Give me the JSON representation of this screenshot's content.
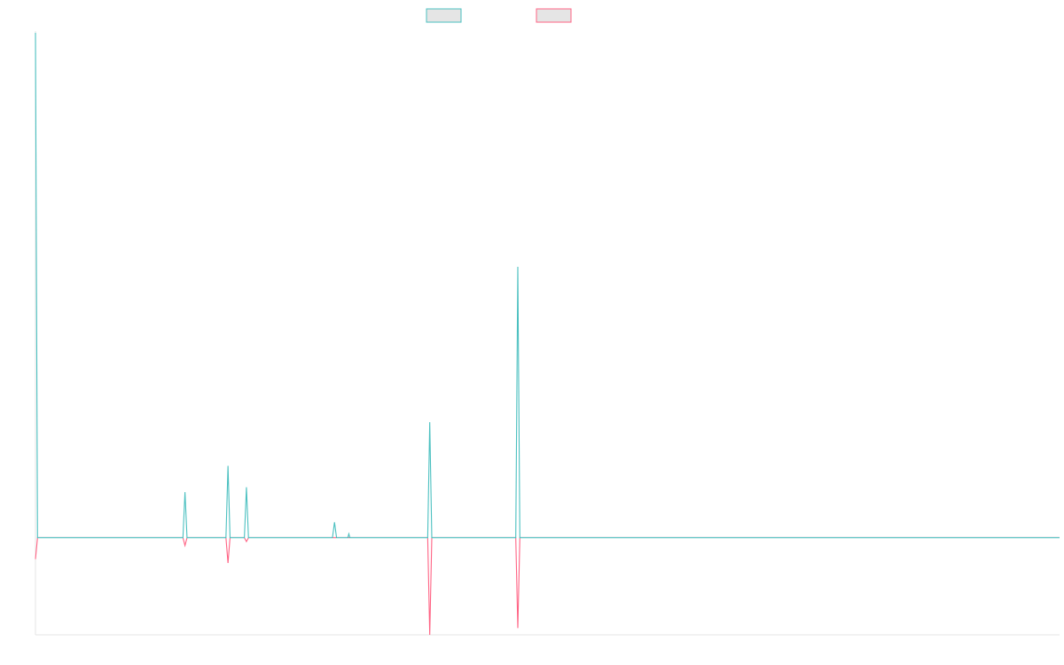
{
  "colors": {
    "series_1": "#4bc0c0",
    "series_2": "#ff6384",
    "legend_fill": "#e5e5e5",
    "axis": "#e6e6e6"
  },
  "chart_data": {
    "type": "line",
    "grid": false,
    "legend_position": "top-center",
    "xlim": [
      0,
      1000
    ],
    "ylim": [
      -10,
      52
    ],
    "x": [
      0,
      2,
      144,
      146,
      148,
      186,
      188,
      190,
      204,
      206,
      208,
      290,
      292,
      294,
      305,
      306,
      307,
      383,
      385,
      387,
      469,
      471,
      473,
      1000
    ],
    "series": [
      {
        "color_key": "series_1",
        "values": [
          52,
          0,
          0,
          4.7,
          0,
          0,
          7.4,
          0,
          0,
          5.2,
          0,
          0,
          1.6,
          0,
          0,
          0.4,
          0,
          0,
          11.9,
          0,
          0,
          27.9,
          0,
          0
        ]
      },
      {
        "color_key": "series_2",
        "values": [
          -2.2,
          0,
          0,
          -0.8,
          0,
          0,
          -2.6,
          0,
          0,
          -0.4,
          0,
          0,
          0,
          0,
          0,
          0,
          0,
          0,
          -10,
          0,
          0,
          -9.3,
          0,
          0
        ]
      }
    ]
  }
}
